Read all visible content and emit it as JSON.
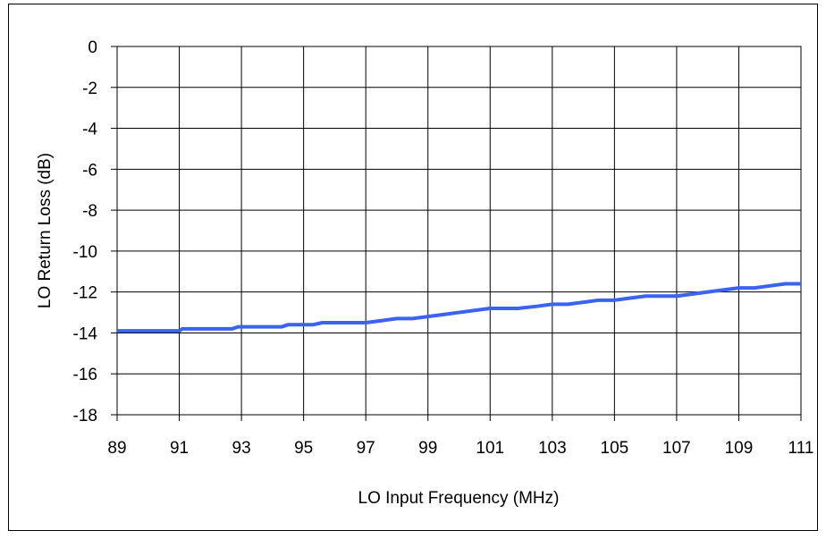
{
  "chart_data": {
    "type": "line",
    "title": "",
    "xlabel": "LO Input Frequency (MHz)",
    "ylabel": "LO Return Loss (dB)",
    "xlim": [
      89,
      111
    ],
    "ylim": [
      -18,
      0
    ],
    "xticks": [
      89,
      91,
      93,
      95,
      97,
      99,
      101,
      103,
      105,
      107,
      109,
      111
    ],
    "yticks": [
      0,
      -2,
      -4,
      -6,
      -8,
      -10,
      -12,
      -14,
      -16,
      -18
    ],
    "grid": true,
    "legend": "none",
    "series": [
      {
        "color": "#3c62f0",
        "points": [
          [
            89.0,
            -13.9
          ],
          [
            89.5,
            -13.9
          ],
          [
            90.0,
            -13.9
          ],
          [
            90.5,
            -13.9
          ],
          [
            91.0,
            -13.9
          ],
          [
            91.1,
            -13.8
          ],
          [
            91.5,
            -13.8
          ],
          [
            92.0,
            -13.8
          ],
          [
            92.5,
            -13.8
          ],
          [
            92.7,
            -13.8
          ],
          [
            92.9,
            -13.7
          ],
          [
            93.5,
            -13.7
          ],
          [
            94.0,
            -13.7
          ],
          [
            94.3,
            -13.7
          ],
          [
            94.5,
            -13.6
          ],
          [
            95.0,
            -13.6
          ],
          [
            95.3,
            -13.6
          ],
          [
            95.6,
            -13.5
          ],
          [
            96.0,
            -13.5
          ],
          [
            96.5,
            -13.5
          ],
          [
            97.0,
            -13.5
          ],
          [
            97.5,
            -13.4
          ],
          [
            98.0,
            -13.3
          ],
          [
            98.5,
            -13.3
          ],
          [
            99.0,
            -13.2
          ],
          [
            99.5,
            -13.1
          ],
          [
            100.0,
            -13.0
          ],
          [
            100.5,
            -12.9
          ],
          [
            101.0,
            -12.8
          ],
          [
            101.5,
            -12.8
          ],
          [
            101.9,
            -12.8
          ],
          [
            102.5,
            -12.7
          ],
          [
            103.0,
            -12.6
          ],
          [
            103.5,
            -12.6
          ],
          [
            104.0,
            -12.5
          ],
          [
            104.5,
            -12.4
          ],
          [
            105.0,
            -12.4
          ],
          [
            105.5,
            -12.3
          ],
          [
            106.0,
            -12.2
          ],
          [
            106.5,
            -12.2
          ],
          [
            107.0,
            -12.2
          ],
          [
            107.5,
            -12.1
          ],
          [
            108.0,
            -12.0
          ],
          [
            108.5,
            -11.9
          ],
          [
            109.0,
            -11.8
          ],
          [
            109.5,
            -11.8
          ],
          [
            110.0,
            -11.7
          ],
          [
            110.5,
            -11.6
          ],
          [
            111.0,
            -11.6
          ]
        ]
      }
    ]
  }
}
